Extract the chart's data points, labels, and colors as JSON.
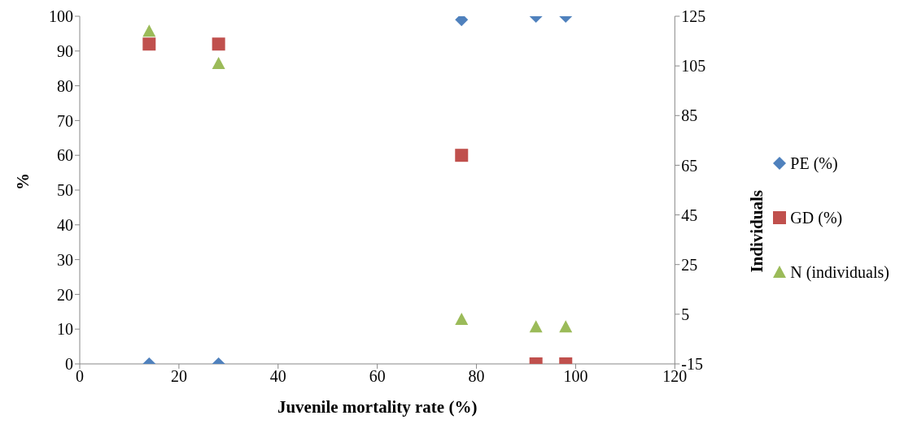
{
  "chart_data": {
    "type": "scatter",
    "xlabel": "Juvenile mortality rate (%)",
    "ylabel": "%",
    "y2label": "Individuals",
    "x": [
      14,
      28,
      77,
      92,
      98
    ],
    "series": [
      {
        "name": "PE (%)",
        "color": "#4f81bd",
        "marker": "diamond",
        "values": [
          0,
          0,
          99,
          100,
          100
        ]
      },
      {
        "name": "GD (%)",
        "color": "#c0504d",
        "marker": "square",
        "values": [
          92,
          92,
          60,
          0,
          0
        ]
      },
      {
        "name": "N (individuals)",
        "color": "#9bbb59",
        "marker": "triangle",
        "axis": "y2",
        "values": [
          119,
          106,
          3,
          0,
          0
        ]
      }
    ],
    "xlim": [
      0,
      120
    ],
    "xticks": [
      0,
      20,
      40,
      60,
      80,
      100,
      120
    ],
    "ylim": [
      0,
      100
    ],
    "yticks": [
      0,
      10,
      20,
      30,
      40,
      50,
      60,
      70,
      80,
      90,
      100
    ],
    "y2lim": [
      -15,
      125
    ],
    "y2ticks": [
      -15,
      5,
      25,
      45,
      65,
      85,
      105,
      125
    ],
    "legend": "right"
  }
}
